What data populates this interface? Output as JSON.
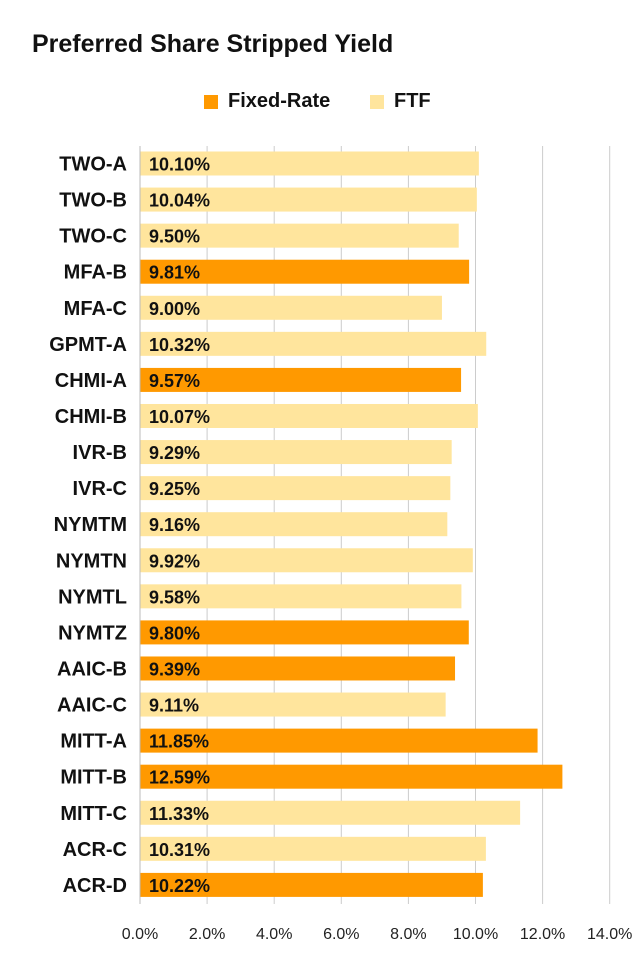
{
  "chart_data": {
    "type": "bar",
    "orientation": "horizontal",
    "title": "Preferred Share Stripped Yield",
    "legend": [
      {
        "name": "Fixed-Rate",
        "color": "#FF9900"
      },
      {
        "name": "FTF",
        "color": "#FFE59D"
      }
    ],
    "legend_position": "top",
    "categories": [
      "TWO-A",
      "TWO-B",
      "TWO-C",
      "MFA-B",
      "MFA-C",
      "GPMT-A",
      "CHMI-A",
      "CHMI-B",
      "IVR-B",
      "IVR-C",
      "NYMTM",
      "NYMTN",
      "NYMTL",
      "NYMTZ",
      "AAIC-B",
      "AAIC-C",
      "MITT-A",
      "MITT-B",
      "MITT-C",
      "ACR-C",
      "ACR-D"
    ],
    "values": [
      10.1,
      10.04,
      9.5,
      9.81,
      9.0,
      10.32,
      9.57,
      10.07,
      9.29,
      9.25,
      9.16,
      9.92,
      9.58,
      9.8,
      9.39,
      9.11,
      11.85,
      12.59,
      11.33,
      10.31,
      10.22
    ],
    "value_labels": [
      "10.10%",
      "10.04%",
      "9.50%",
      "9.81%",
      "9.00%",
      "10.32%",
      "9.57%",
      "10.07%",
      "9.29%",
      "9.25%",
      "9.16%",
      "9.92%",
      "9.58%",
      "9.80%",
      "9.39%",
      "9.11%",
      "11.85%",
      "12.59%",
      "11.33%",
      "10.31%",
      "10.22%"
    ],
    "series_type": [
      "FTF",
      "FTF",
      "FTF",
      "Fixed-Rate",
      "FTF",
      "FTF",
      "Fixed-Rate",
      "FTF",
      "FTF",
      "FTF",
      "FTF",
      "FTF",
      "FTF",
      "Fixed-Rate",
      "Fixed-Rate",
      "FTF",
      "Fixed-Rate",
      "Fixed-Rate",
      "FTF",
      "FTF",
      "Fixed-Rate"
    ],
    "xlim": [
      0,
      14
    ],
    "xticks": [
      "0.0%",
      "2.0%",
      "4.0%",
      "6.0%",
      "8.0%",
      "10.0%",
      "12.0%",
      "14.0%"
    ],
    "grid": true,
    "xlabel": "",
    "ylabel": ""
  }
}
